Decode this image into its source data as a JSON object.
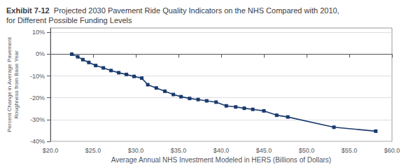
{
  "chart_data": {
    "type": "line",
    "title": "Exhibit 7-12",
    "subtitle": "Projected 2030 Pavement Ride Quality Indicators on the NHS Compared with 2010,\nfor Different Possible Funding Levels",
    "xlabel": "Average Annual NHS Investment Modeled in HERS (Billions of Dollars)",
    "ylabel": "Percent Change in Average Pavement\nRoughness from Base Year",
    "x": [
      22.5,
      23.2,
      23.8,
      24.5,
      25.3,
      26.2,
      27.1,
      28.0,
      28.9,
      29.8,
      30.7,
      31.4,
      32.4,
      33.4,
      34.4,
      35.3,
      36.3,
      37.3,
      38.3,
      39.4,
      40.6,
      41.7,
      42.7,
      43.7,
      45.0,
      46.5,
      47.8,
      53.2,
      58.1
    ],
    "values": [
      0.0,
      -1.2,
      -2.5,
      -3.8,
      -5.2,
      -6.3,
      -7.5,
      -8.5,
      -9.3,
      -10.2,
      -11.0,
      -14.0,
      -15.5,
      -17.0,
      -18.5,
      -19.5,
      -20.3,
      -20.8,
      -21.4,
      -22.0,
      -23.7,
      -24.2,
      -24.8,
      -25.3,
      -26.0,
      -28.0,
      -28.8,
      -33.5,
      -35.3
    ],
    "color": "#1a3a6e",
    "marker": "square",
    "xlim": [
      20.0,
      60.0
    ],
    "ylim": [
      -40,
      12
    ],
    "xticks": [
      {
        "value": 20.0,
        "label": "$20.0"
      },
      {
        "value": 25.0,
        "label": "$25.0"
      },
      {
        "value": 30.0,
        "label": "$30.0"
      },
      {
        "value": 35.0,
        "label": "$35.0"
      },
      {
        "value": 40.0,
        "label": "$40.0"
      },
      {
        "value": 45.0,
        "label": "$45.0"
      },
      {
        "value": 50.0,
        "label": "$50.0"
      },
      {
        "value": 55.0,
        "label": "$55.0"
      },
      {
        "value": 60.0,
        "label": "$60.0"
      }
    ],
    "yticks": [
      {
        "value": -40,
        "label": "-40%"
      },
      {
        "value": -30,
        "label": "-30%"
      },
      {
        "value": -20,
        "label": "-20%"
      },
      {
        "value": -10,
        "label": "-10%"
      },
      {
        "value": 0,
        "label": "0%"
      },
      {
        "value": 10,
        "label": "10%"
      }
    ],
    "grid": true
  }
}
